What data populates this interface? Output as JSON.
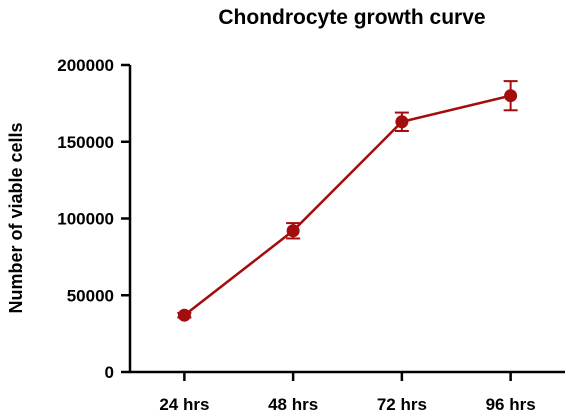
{
  "colors": {
    "series": "#a30d0d",
    "axis": "#000000"
  },
  "chart_data": {
    "type": "line",
    "title": "Chondrocyte growth curve",
    "xlabel": "",
    "ylabel": "Number of viable cells",
    "categories": [
      "24 hrs",
      "48 hrs",
      "72 hrs",
      "96 hrs"
    ],
    "ylim": [
      0,
      200000
    ],
    "yticks": [
      0,
      50000,
      100000,
      150000,
      200000
    ],
    "ytick_labels": [
      "0",
      "50000",
      "100000",
      "150000",
      "200000"
    ],
    "grid": false,
    "legend": "none",
    "series": [
      {
        "values": [
          37000,
          92000,
          163000,
          180000
        ],
        "error": [
          1500,
          5000,
          6000,
          9500
        ],
        "marker": "circle"
      }
    ]
  }
}
